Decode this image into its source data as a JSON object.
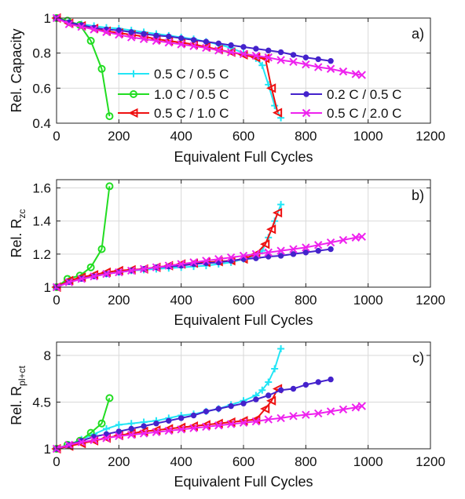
{
  "colors": {
    "c05_05": "#22e5f5",
    "c10_05": "#22dd22",
    "c05_10": "#ee1111",
    "c02_05": "#4422cc",
    "c05_20": "#ee22ee"
  },
  "legend": {
    "entries": [
      {
        "key": "c05_05",
        "label": "0.5 C / 0.5 C",
        "marker": "plus"
      },
      {
        "key": "c10_05",
        "label": "1.0 C / 0.5 C",
        "marker": "circle"
      },
      {
        "key": "c05_10",
        "label": "0.5 C / 1.0 C",
        "marker": "triangle-left"
      },
      {
        "key": "c02_05",
        "label": "0.2 C / 0.5 C",
        "marker": "dot"
      },
      {
        "key": "c05_20",
        "label": "0.5 C / 2.0 C",
        "marker": "cross"
      }
    ]
  },
  "chart_data": [
    {
      "type": "line",
      "panel_label": "a)",
      "xlabel": "Equivalent Full Cycles",
      "ylabel": "Rel. Capacity",
      "xlim": [
        0,
        1200
      ],
      "ylim": [
        0.4,
        1.0
      ],
      "xticks": [
        "0",
        "200",
        "400",
        "600",
        "800",
        "1000",
        "1200"
      ],
      "yticks": [
        {
          "v": 0.4,
          "t": "0.4"
        },
        {
          "v": 0.6,
          "t": "0.6"
        },
        {
          "v": 0.8,
          "t": "0.8"
        },
        {
          "v": 1.0,
          "t": "1"
        }
      ],
      "grid": true,
      "series": [
        {
          "key": "c05_05",
          "marker": "plus",
          "x": [
            0,
            40,
            80,
            120,
            160,
            200,
            240,
            280,
            320,
            360,
            400,
            440,
            480,
            520,
            560,
            600,
            640,
            660,
            680,
            700,
            720
          ],
          "y": [
            1.0,
            0.975,
            0.965,
            0.955,
            0.945,
            0.94,
            0.93,
            0.92,
            0.91,
            0.9,
            0.89,
            0.88,
            0.865,
            0.85,
            0.83,
            0.8,
            0.77,
            0.73,
            0.62,
            0.5,
            0.43
          ]
        },
        {
          "key": "c10_05",
          "marker": "circle",
          "x": [
            0,
            35,
            75,
            110,
            145,
            170
          ],
          "y": [
            1.0,
            0.985,
            0.96,
            0.87,
            0.71,
            0.44
          ]
        },
        {
          "key": "c05_10",
          "marker": "triangle-left",
          "x": [
            0,
            40,
            80,
            120,
            160,
            200,
            240,
            280,
            320,
            360,
            400,
            440,
            480,
            520,
            560,
            600,
            640,
            670,
            690,
            710
          ],
          "y": [
            1.0,
            0.97,
            0.955,
            0.94,
            0.925,
            0.915,
            0.905,
            0.895,
            0.88,
            0.87,
            0.86,
            0.85,
            0.835,
            0.82,
            0.805,
            0.79,
            0.775,
            0.77,
            0.6,
            0.46
          ]
        },
        {
          "key": "c02_05",
          "marker": "dot",
          "x": [
            0,
            40,
            80,
            120,
            160,
            200,
            240,
            280,
            320,
            360,
            400,
            440,
            480,
            520,
            560,
            600,
            640,
            680,
            720,
            760,
            800,
            840,
            880
          ],
          "y": [
            1.0,
            0.975,
            0.96,
            0.945,
            0.935,
            0.93,
            0.92,
            0.91,
            0.9,
            0.895,
            0.885,
            0.875,
            0.865,
            0.855,
            0.845,
            0.835,
            0.825,
            0.815,
            0.805,
            0.79,
            0.775,
            0.765,
            0.755
          ]
        },
        {
          "key": "c05_20",
          "marker": "cross",
          "x": [
            0,
            40,
            80,
            120,
            160,
            200,
            240,
            280,
            320,
            360,
            400,
            440,
            480,
            520,
            560,
            600,
            640,
            680,
            720,
            760,
            800,
            840,
            880,
            920,
            960,
            980
          ],
          "y": [
            1.0,
            0.965,
            0.95,
            0.935,
            0.92,
            0.905,
            0.89,
            0.88,
            0.87,
            0.86,
            0.85,
            0.84,
            0.83,
            0.815,
            0.805,
            0.795,
            0.785,
            0.775,
            0.76,
            0.75,
            0.735,
            0.72,
            0.71,
            0.695,
            0.68,
            0.675
          ]
        }
      ]
    },
    {
      "type": "line",
      "panel_label": "b)",
      "xlabel": "Equivalent Full Cycles",
      "ylabel": "Rel. R",
      "ylabel_sub": "zc",
      "xlim": [
        0,
        1200
      ],
      "ylim": [
        1.0,
        1.65
      ],
      "xticks": [
        "0",
        "200",
        "400",
        "600",
        "800",
        "1000",
        "1200"
      ],
      "yticks": [
        {
          "v": 1.0,
          "t": "1"
        },
        {
          "v": 1.2,
          "t": "1.2"
        },
        {
          "v": 1.4,
          "t": "1.4"
        },
        {
          "v": 1.6,
          "t": "1.6"
        }
      ],
      "grid": true,
      "series": [
        {
          "key": "c05_05",
          "marker": "plus",
          "x": [
            0,
            40,
            80,
            120,
            160,
            200,
            240,
            280,
            320,
            360,
            400,
            440,
            480,
            520,
            560,
            600,
            640,
            660,
            680,
            700,
            720
          ],
          "y": [
            1.0,
            1.04,
            1.06,
            1.07,
            1.08,
            1.09,
            1.1,
            1.105,
            1.11,
            1.115,
            1.12,
            1.125,
            1.13,
            1.14,
            1.15,
            1.17,
            1.19,
            1.22,
            1.3,
            1.4,
            1.5
          ]
        },
        {
          "key": "c10_05",
          "marker": "circle",
          "x": [
            0,
            35,
            75,
            110,
            145,
            170
          ],
          "y": [
            1.0,
            1.05,
            1.07,
            1.12,
            1.23,
            1.61
          ]
        },
        {
          "key": "c05_10",
          "marker": "triangle-left",
          "x": [
            0,
            40,
            80,
            120,
            160,
            200,
            240,
            280,
            320,
            360,
            400,
            440,
            480,
            520,
            560,
            600,
            640,
            670,
            690,
            710
          ],
          "y": [
            1.0,
            1.04,
            1.06,
            1.075,
            1.09,
            1.1,
            1.105,
            1.11,
            1.12,
            1.13,
            1.14,
            1.145,
            1.15,
            1.155,
            1.16,
            1.17,
            1.2,
            1.26,
            1.35,
            1.45
          ]
        },
        {
          "key": "c02_05",
          "marker": "dot",
          "x": [
            0,
            40,
            80,
            120,
            160,
            200,
            240,
            280,
            320,
            360,
            400,
            440,
            480,
            520,
            560,
            600,
            640,
            680,
            720,
            760,
            800,
            840,
            880
          ],
          "y": [
            1.0,
            1.03,
            1.05,
            1.065,
            1.08,
            1.09,
            1.1,
            1.11,
            1.12,
            1.125,
            1.13,
            1.14,
            1.145,
            1.15,
            1.16,
            1.17,
            1.175,
            1.185,
            1.19,
            1.2,
            1.21,
            1.22,
            1.23
          ]
        },
        {
          "key": "c05_20",
          "marker": "cross",
          "x": [
            0,
            40,
            80,
            120,
            160,
            200,
            240,
            280,
            320,
            360,
            400,
            440,
            480,
            520,
            560,
            600,
            640,
            680,
            720,
            760,
            800,
            840,
            880,
            920,
            960,
            980
          ],
          "y": [
            1.0,
            1.03,
            1.05,
            1.065,
            1.08,
            1.09,
            1.1,
            1.11,
            1.12,
            1.13,
            1.14,
            1.15,
            1.16,
            1.17,
            1.18,
            1.19,
            1.2,
            1.21,
            1.22,
            1.23,
            1.24,
            1.255,
            1.27,
            1.285,
            1.3,
            1.305
          ]
        }
      ]
    },
    {
      "type": "line",
      "panel_label": "c)",
      "xlabel": "Equivalent Full Cycles",
      "ylabel": "Rel. R",
      "ylabel_sub": "pl+ct",
      "xlim": [
        0,
        1200
      ],
      "ylim": [
        1.0,
        9.0
      ],
      "xticks": [
        "0",
        "200",
        "400",
        "600",
        "800",
        "1000",
        "1200"
      ],
      "yticks": [
        {
          "v": 1.0,
          "t": "1"
        },
        {
          "v": 4.5,
          "t": "4.5"
        },
        {
          "v": 8.0,
          "t": "8"
        }
      ],
      "grid": true,
      "series": [
        {
          "key": "c05_05",
          "marker": "plus",
          "x": [
            0,
            40,
            80,
            120,
            160,
            200,
            240,
            280,
            320,
            360,
            400,
            440,
            480,
            520,
            560,
            600,
            640,
            660,
            680,
            700,
            720
          ],
          "y": [
            1.0,
            1.3,
            1.7,
            2.1,
            2.5,
            2.8,
            2.9,
            3.0,
            3.1,
            3.3,
            3.5,
            3.6,
            3.8,
            4.0,
            4.3,
            4.6,
            5.0,
            5.4,
            6.0,
            7.0,
            8.5
          ]
        },
        {
          "key": "c10_05",
          "marker": "circle",
          "x": [
            0,
            35,
            75,
            110,
            145,
            170
          ],
          "y": [
            1.0,
            1.3,
            1.6,
            2.2,
            2.9,
            4.8
          ]
        },
        {
          "key": "c05_10",
          "marker": "triangle-left",
          "x": [
            0,
            40,
            80,
            120,
            160,
            200,
            240,
            280,
            320,
            360,
            400,
            440,
            480,
            520,
            560,
            600,
            640,
            670,
            690,
            710
          ],
          "y": [
            1.0,
            1.2,
            1.4,
            1.6,
            1.8,
            2.0,
            2.15,
            2.3,
            2.4,
            2.5,
            2.6,
            2.7,
            2.8,
            2.9,
            3.0,
            3.1,
            3.2,
            4.0,
            4.6,
            5.5
          ]
        },
        {
          "key": "c02_05",
          "marker": "dot",
          "x": [
            0,
            40,
            80,
            120,
            160,
            200,
            240,
            280,
            320,
            360,
            400,
            440,
            480,
            520,
            560,
            600,
            640,
            680,
            720,
            760,
            800,
            840,
            880
          ],
          "y": [
            1.0,
            1.3,
            1.6,
            1.9,
            2.1,
            2.3,
            2.5,
            2.7,
            2.9,
            3.1,
            3.3,
            3.5,
            3.8,
            4.0,
            4.2,
            4.4,
            4.7,
            5.0,
            5.4,
            5.5,
            5.8,
            6.0,
            6.2
          ]
        },
        {
          "key": "c05_20",
          "marker": "cross",
          "x": [
            0,
            40,
            80,
            120,
            160,
            200,
            240,
            280,
            320,
            360,
            400,
            440,
            480,
            520,
            560,
            600,
            640,
            680,
            720,
            760,
            800,
            840,
            880,
            920,
            960,
            980
          ],
          "y": [
            1.0,
            1.3,
            1.5,
            1.65,
            1.8,
            1.95,
            2.05,
            2.15,
            2.25,
            2.35,
            2.45,
            2.55,
            2.65,
            2.75,
            2.85,
            2.95,
            3.05,
            3.2,
            3.3,
            3.45,
            3.55,
            3.65,
            3.8,
            3.95,
            4.1,
            4.2
          ]
        }
      ]
    }
  ]
}
